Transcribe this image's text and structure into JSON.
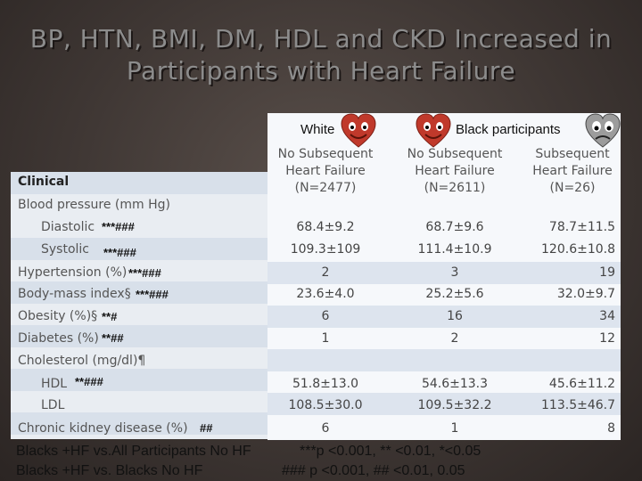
{
  "title_line1": "BP, HTN, BMI, DM, HDL and CKD Increased in",
  "title_line2": "Participants with Heart Failure",
  "groups": {
    "white": "White",
    "black": "Black participants"
  },
  "col_headers": [
    {
      "l1": "No Subsequent",
      "l2": "Heart Failure",
      "l3": "(N=2477)"
    },
    {
      "l1": "No Subsequent",
      "l2": "Heart Failure",
      "l3": "(N=2611)"
    },
    {
      "l1": "Subsequent",
      "l2": "Heart Failure",
      "l3": "(N=26)"
    }
  ],
  "clinical_header": "Clinical",
  "rows": [
    {
      "label": "Blood pressure (mm Hg)",
      "marks": "",
      "v1": "",
      "v2": "",
      "v3": ""
    },
    {
      "label": "Diastolic",
      "marks": "***###",
      "v1": "68.4±9.2",
      "v2": "68.7±9.6",
      "v3": "78.7±11.5"
    },
    {
      "label": "Systolic",
      "marks": "***###",
      "v1": "109.3±109",
      "v2": "111.4±10.9",
      "v3": "120.6±10.8"
    },
    {
      "label": "Hypertension (%)",
      "marks": "***###",
      "v1": "2",
      "v2": "3",
      "v3": "19"
    },
    {
      "label": "Body-mass index§",
      "marks": "***###",
      "v1": "23.6±4.0",
      "v2": "25.2±5.6",
      "v3": "32.0±9.7"
    },
    {
      "label": "Obesity (%)§",
      "marks": "**#",
      "v1": "6",
      "v2": "16",
      "v3": "34"
    },
    {
      "label": "Diabetes (%)",
      "marks": "**##",
      "v1": "1",
      "v2": "2",
      "v3": "12"
    },
    {
      "label": "Cholesterol (mg/dl)¶",
      "marks": "",
      "v1": "",
      "v2": "",
      "v3": ""
    },
    {
      "label": "HDL",
      "marks": "**###",
      "v1": "51.8±13.0",
      "v2": "54.6±13.3",
      "v3": "45.6±11.2"
    },
    {
      "label": "LDL",
      "marks": "",
      "v1": "108.5±30.0",
      "v2": "109.5±32.2",
      "v3": "113.5±46.7"
    },
    {
      "label": "Chronic kidney disease (%)",
      "marks": "##",
      "v1": "6",
      "v2": "1",
      "v3": "8"
    }
  ],
  "footer": {
    "a1": "Blacks +HF vs.All Participants No HF",
    "a2": "***p <0.001, ** <0.01, *<0.05",
    "b1": "Blacks +HF vs. Blacks No HF",
    "b2": "### p <0.001, ## <0.01, 0.05"
  }
}
